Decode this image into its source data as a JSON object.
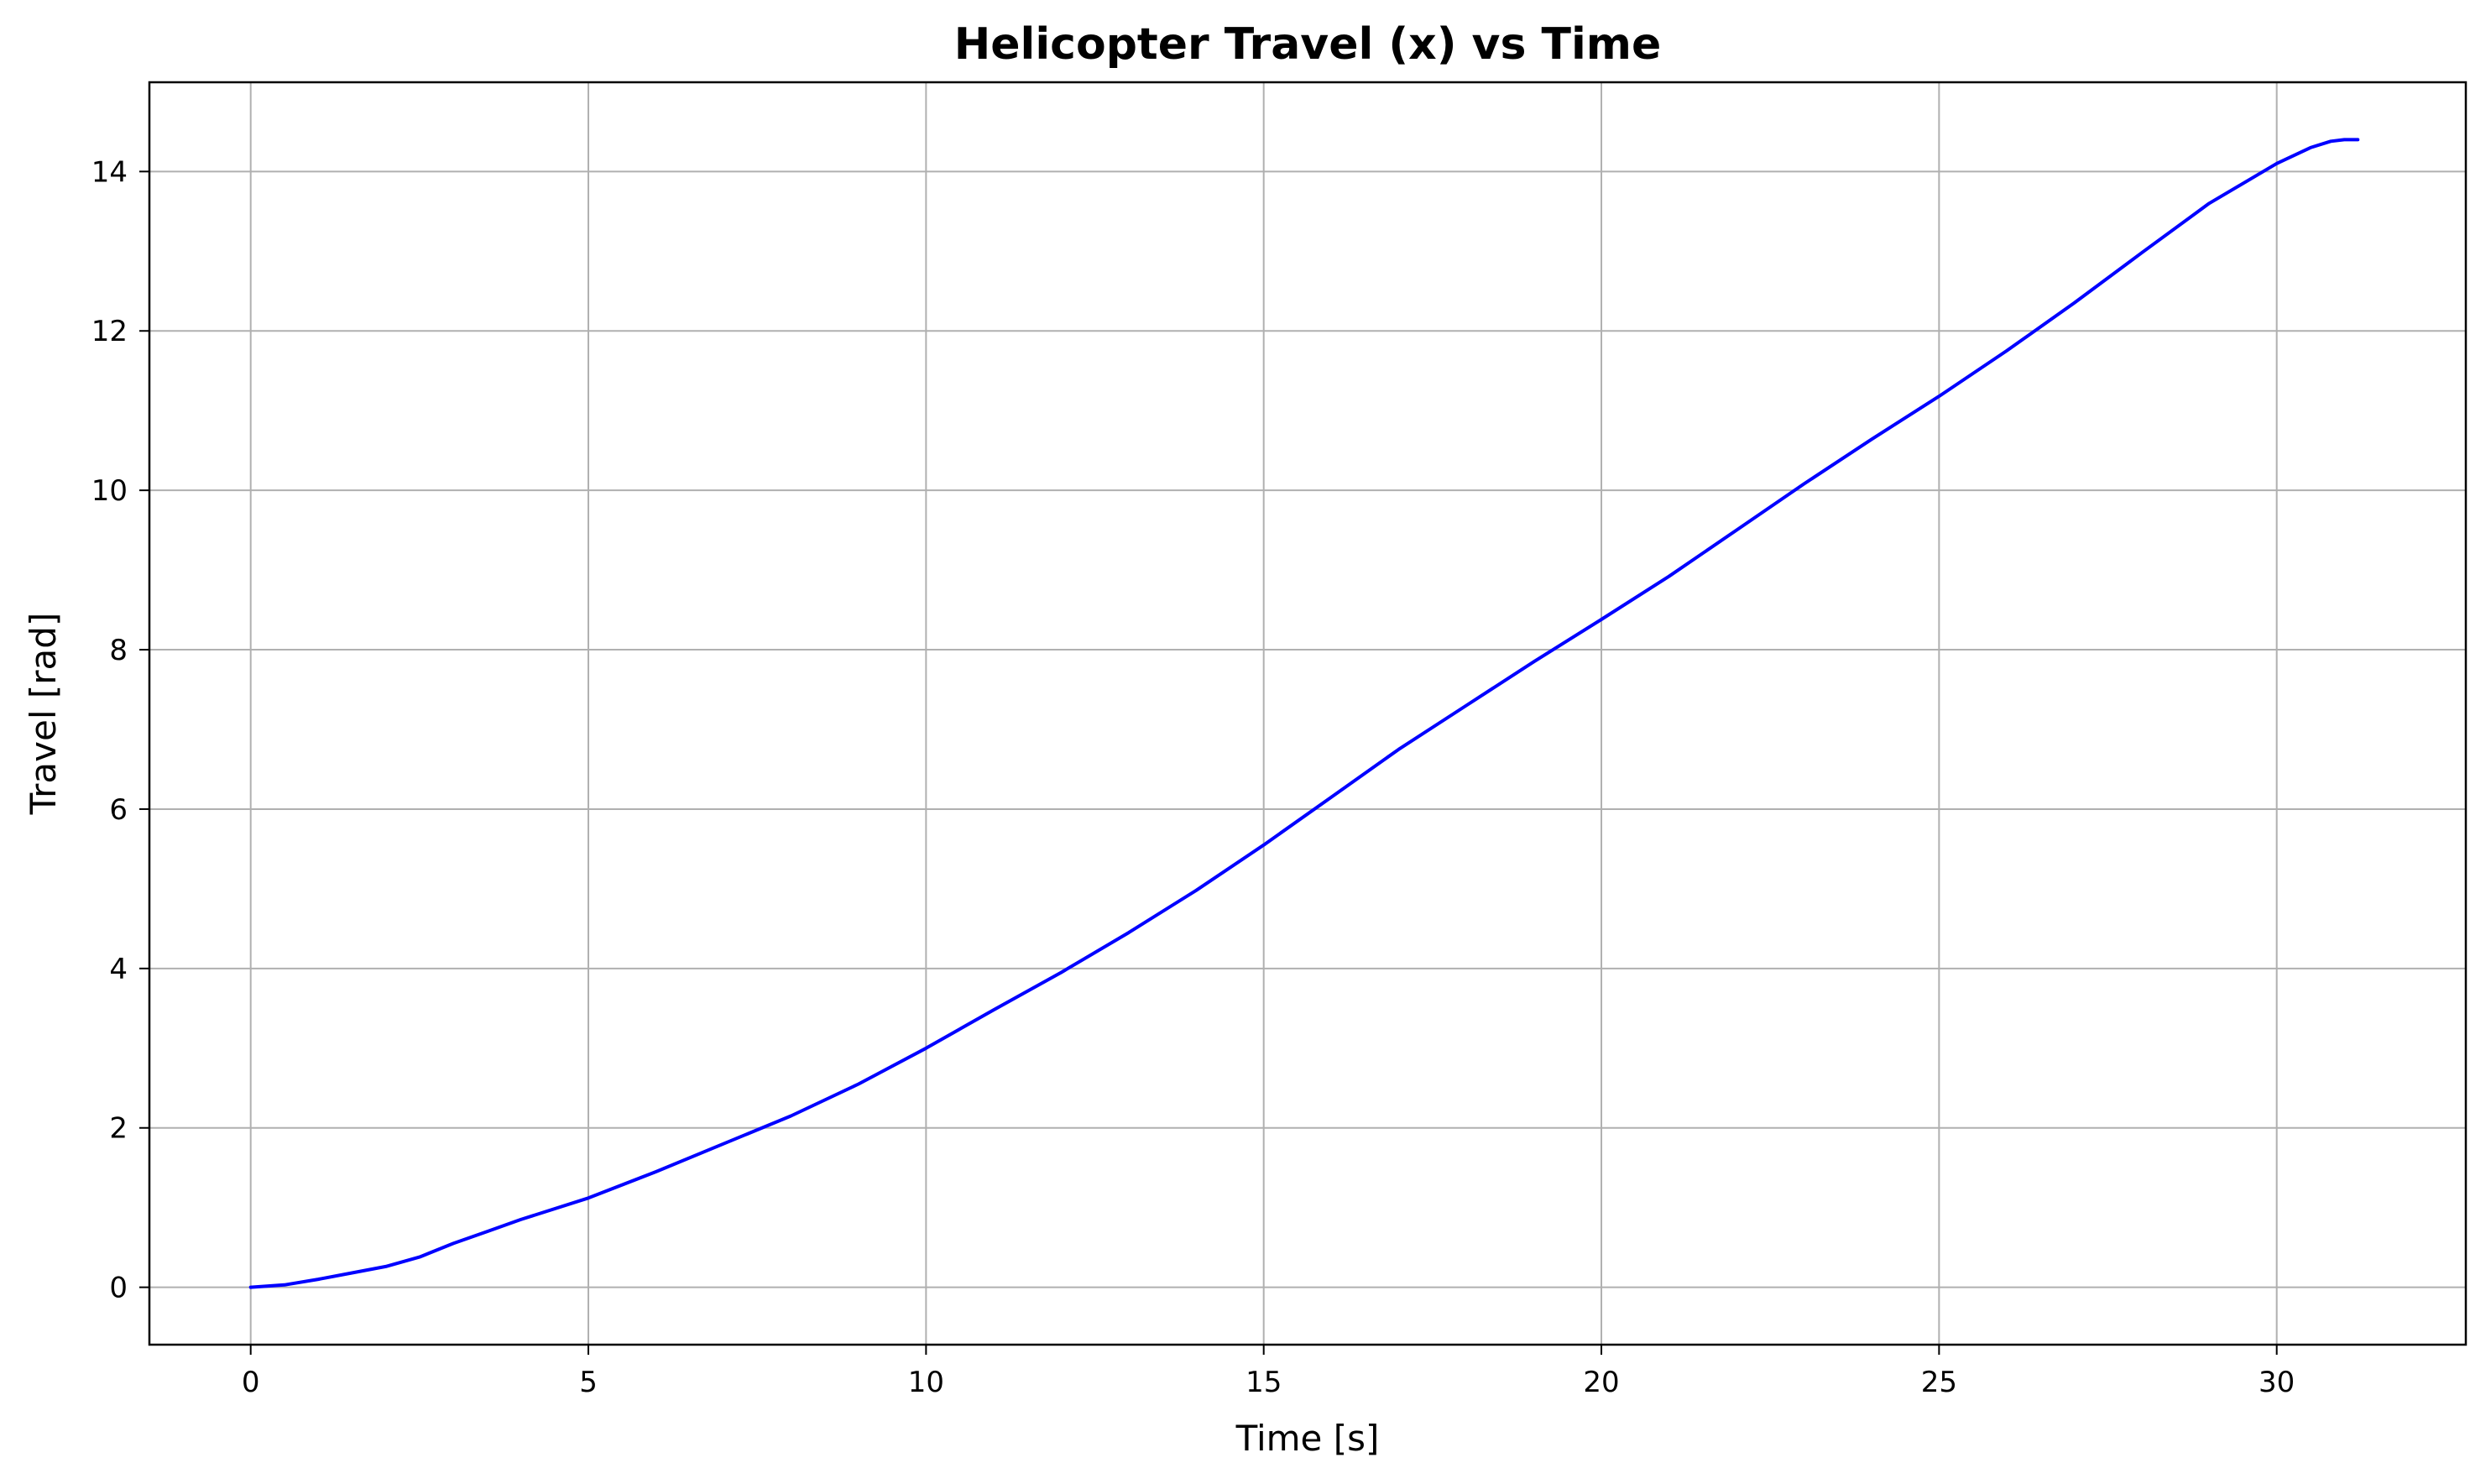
{
  "chart_data": {
    "type": "line",
    "title": "Helicopter Travel (x) vs Time",
    "xlabel": "Time [s]",
    "ylabel": "Travel [rad]",
    "xlim": [
      -1.5,
      32.8
    ],
    "ylim": [
      -0.72,
      15.12
    ],
    "xticks": [
      0,
      5,
      10,
      15,
      20,
      25,
      30
    ],
    "yticks": [
      0,
      2,
      4,
      6,
      8,
      10,
      12,
      14
    ],
    "grid": true,
    "legend": "none",
    "series": [
      {
        "color": "#0000ff",
        "x": [
          0,
          0.5,
          1,
          1.5,
          2,
          2.5,
          3,
          3.5,
          4,
          5,
          6,
          7,
          8,
          9,
          10,
          11,
          12,
          13,
          14,
          15,
          16,
          17,
          18,
          19,
          20,
          21,
          22,
          23,
          24,
          25,
          26,
          27,
          28,
          29,
          30,
          30.5,
          30.8,
          31,
          31.2
        ],
        "y": [
          0,
          0.03,
          0.1,
          0.18,
          0.26,
          0.38,
          0.55,
          0.7,
          0.85,
          1.12,
          1.45,
          1.8,
          2.15,
          2.55,
          3.0,
          3.48,
          3.95,
          4.45,
          4.98,
          5.55,
          6.15,
          6.75,
          7.3,
          7.85,
          8.38,
          8.92,
          9.5,
          10.08,
          10.64,
          11.18,
          11.75,
          12.35,
          12.98,
          13.6,
          14.1,
          14.3,
          14.38,
          14.4,
          14.4
        ]
      }
    ]
  }
}
